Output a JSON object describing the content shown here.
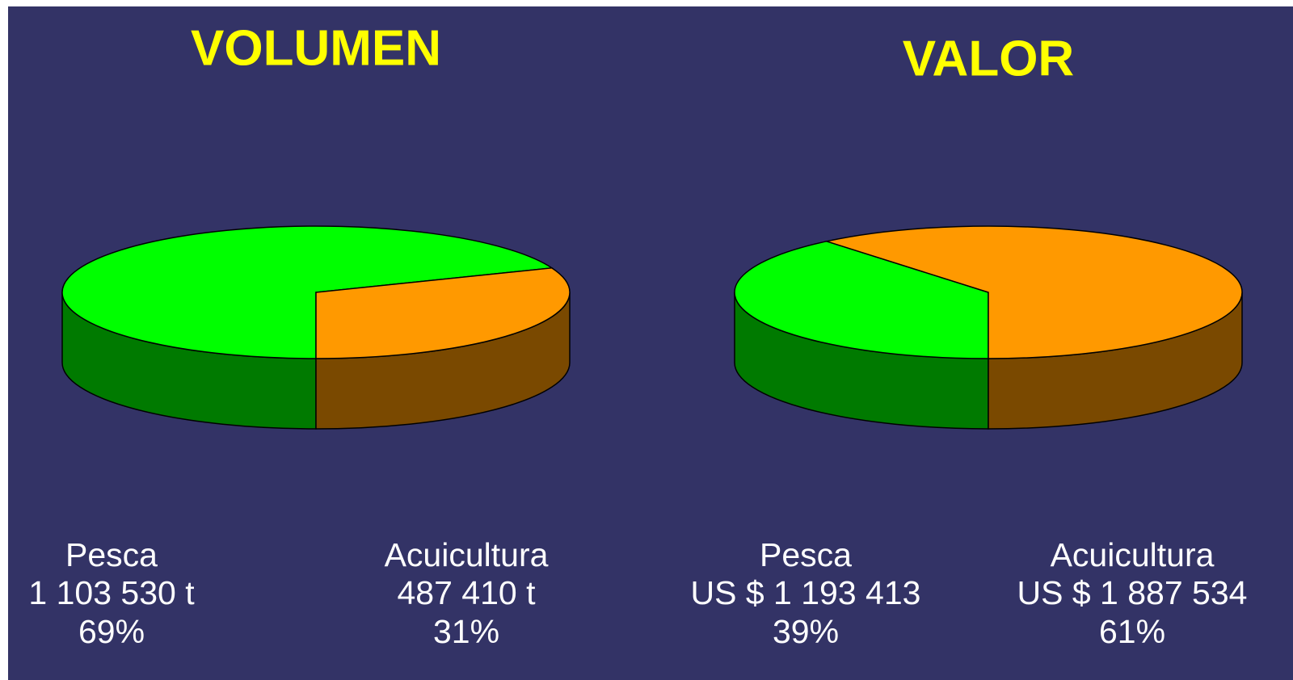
{
  "chart_data": [
    {
      "type": "pie",
      "title": "VOLUMEN",
      "categories": [
        "Pesca",
        "Acuicultura"
      ],
      "amounts": [
        "1 103 530 t",
        "487 410 t"
      ],
      "values": [
        69,
        31
      ],
      "value_labels": [
        "69%",
        "31%"
      ],
      "colors": [
        "#00ff00",
        "#ff9900"
      ]
    },
    {
      "type": "pie",
      "title": "VALOR",
      "categories": [
        "Pesca",
        "Acuicultura"
      ],
      "amounts": [
        "US $ 1 193 413",
        "US $ 1 887 534"
      ],
      "values": [
        39,
        61
      ],
      "value_labels": [
        "39%",
        "61%"
      ],
      "colors": [
        "#00ff00",
        "#ff9900"
      ]
    }
  ]
}
